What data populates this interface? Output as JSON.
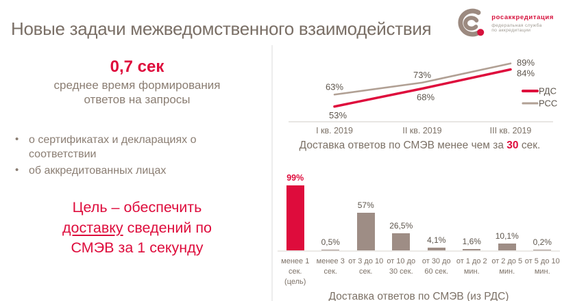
{
  "slide": {
    "title": "Новые задачи межведомственного взаимодействия"
  },
  "logo": {
    "name": "росаккредитация",
    "subtitle_line1": "федеральная служба",
    "subtitle_line2": "по аккредитации"
  },
  "left": {
    "stat_value": "0,7 сек",
    "stat_caption_line1": "среднее время формирования",
    "stat_caption_line2": "ответов на запросы",
    "bullets": [
      "о сертификатах и декларациях о соответствии",
      "об аккредитованных лицах"
    ],
    "goal": {
      "line1": "Цель – обеспечить",
      "line2_underlined": "доставку",
      "line2_rest": " сведений по",
      "line3": "СМЭВ за 1 секунду"
    }
  },
  "colors": {
    "accent_red": "#de0c3c",
    "taupe_bar": "#9e8d85",
    "taupe_line": "#b1a094",
    "title_text": "#7a6f66",
    "body_text": "#8a7d72",
    "label_text": "#5d554c"
  },
  "chart_data": [
    {
      "type": "line",
      "title": "Доставка ответов по СМЭВ менее чем за 30 сек.",
      "caption": {
        "prefix": "Доставка ответов по СМЭВ менее чем за",
        "highlight": "30",
        "suffix": "сек."
      },
      "categories": [
        "I кв. 2019",
        "II кв. 2019",
        "III кв. 2019"
      ],
      "series": [
        {
          "name": "РДС",
          "values": [
            53,
            68,
            84
          ],
          "labels": [
            "53%",
            "68%",
            "84%"
          ],
          "color": "#de0c3c",
          "width": 3.5
        },
        {
          "name": "РСС",
          "values": [
            63,
            73,
            89
          ],
          "labels": [
            "63%",
            "73%",
            "89%"
          ],
          "color": "#b1a094",
          "width": 2.6
        }
      ],
      "unit": "%",
      "ylim": [
        50,
        92
      ],
      "xlabel": "",
      "ylabel": "",
      "grid": false,
      "legend_position": "right"
    },
    {
      "type": "bar",
      "title": "Доставка ответов по СМЭВ (из РДС)",
      "categories": [
        "менее 1 сек. (цель)",
        "менее 3 сек.",
        "от 3 до 10 сек.",
        "от 10 до 30 сек.",
        "от 30 до 60 сек.",
        "от 1 до 2 мин.",
        "от 2 до 5 мин.",
        "от 5 до 10 мин."
      ],
      "category_display_lines": [
        [
          "менее 1",
          "сек.",
          "(цель)"
        ],
        [
          "менее 3",
          "сек."
        ],
        [
          "от 3 до 10",
          "сек."
        ],
        [
          "от 10 до",
          "30 сек."
        ],
        [
          "от 30 до",
          "60 сек."
        ],
        [
          "от 1 до 2",
          "мин."
        ],
        [
          "от 2 до 5",
          "мин."
        ],
        [
          "от 5 до 10",
          "мин."
        ]
      ],
      "values": [
        99,
        0.5,
        57,
        26.5,
        4.1,
        1.6,
        10.1,
        0.2
      ],
      "labels": [
        "99%",
        "0,5%",
        "57%",
        "26,5%",
        "4,1%",
        "1,6%",
        "10,1%",
        "0,2%"
      ],
      "highlight_index": 0,
      "xlabel": "",
      "ylabel": "",
      "ylim": [
        0,
        100
      ],
      "grid": false
    }
  ]
}
